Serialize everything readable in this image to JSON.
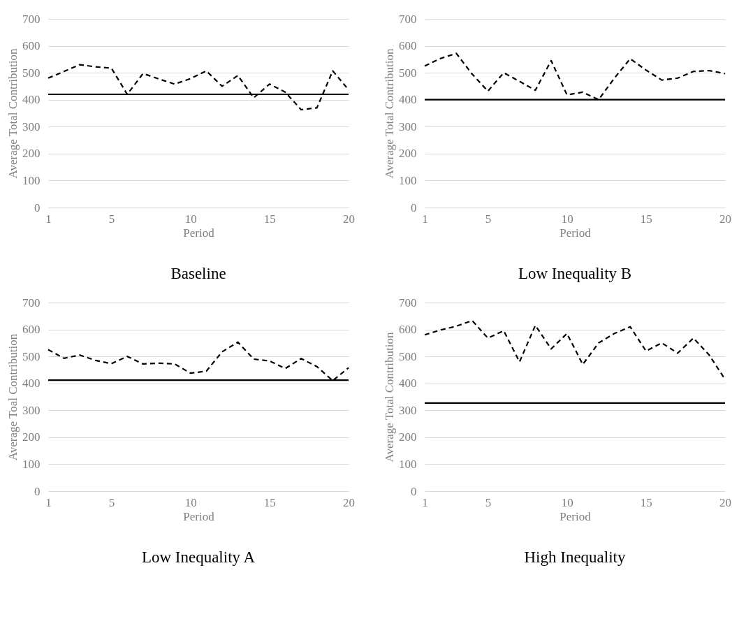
{
  "chart_data": [
    {
      "type": "line",
      "title": "Baseline",
      "xlabel": "Period",
      "ylabel": "Average Total Contribution",
      "x": [
        1,
        2,
        3,
        4,
        5,
        6,
        7,
        8,
        9,
        10,
        11,
        12,
        13,
        14,
        15,
        16,
        17,
        18,
        19,
        20
      ],
      "xlim": [
        1,
        20
      ],
      "xticks": [
        1,
        5,
        10,
        15,
        20
      ],
      "ylim": [
        0,
        700
      ],
      "yticks": [
        0,
        100,
        200,
        300,
        400,
        500,
        600,
        700
      ],
      "grid": "y",
      "series": [
        {
          "color": "#000000",
          "line_style": "dashed",
          "values": [
            480,
            505,
            530,
            522,
            517,
            420,
            497,
            477,
            458,
            478,
            507,
            450,
            490,
            407,
            458,
            428,
            363,
            370,
            507,
            437
          ]
        },
        {
          "color": "#000000",
          "line_style": "solid",
          "values": [
            420,
            420,
            420,
            420,
            420,
            420,
            420,
            420,
            420,
            420,
            420,
            420,
            420,
            420,
            420,
            420,
            420,
            420,
            420,
            420
          ]
        }
      ]
    },
    {
      "type": "line",
      "title": "Low Inequality B",
      "xlabel": "Period",
      "ylabel": "Average Total Contribution",
      "x": [
        1,
        2,
        3,
        4,
        5,
        6,
        7,
        8,
        9,
        10,
        11,
        12,
        13,
        14,
        15,
        16,
        17,
        18,
        19,
        20
      ],
      "xlim": [
        1,
        20
      ],
      "xticks": [
        1,
        5,
        10,
        15,
        20
      ],
      "ylim": [
        0,
        700
      ],
      "yticks": [
        0,
        100,
        200,
        300,
        400,
        500,
        600,
        700
      ],
      "grid": "y",
      "series": [
        {
          "color": "#000000",
          "line_style": "dashed",
          "values": [
            525,
            553,
            572,
            495,
            432,
            500,
            468,
            435,
            545,
            418,
            428,
            400,
            480,
            552,
            510,
            473,
            480,
            505,
            508,
            497
          ]
        },
        {
          "color": "#000000",
          "line_style": "solid",
          "values": [
            400,
            400,
            400,
            400,
            400,
            400,
            400,
            400,
            400,
            400,
            400,
            400,
            400,
            400,
            400,
            400,
            400,
            400,
            400,
            400
          ]
        }
      ]
    },
    {
      "type": "line",
      "title": "Low Inequality A",
      "xlabel": "Period",
      "ylabel": "Average Toal Contribution",
      "x": [
        1,
        2,
        3,
        4,
        5,
        6,
        7,
        8,
        9,
        10,
        11,
        12,
        13,
        14,
        15,
        16,
        17,
        18,
        19,
        20
      ],
      "xlim": [
        1,
        20
      ],
      "xticks": [
        1,
        5,
        10,
        15,
        20
      ],
      "ylim": [
        0,
        700
      ],
      "yticks": [
        0,
        100,
        200,
        300,
        400,
        500,
        600,
        700
      ],
      "grid": "y",
      "series": [
        {
          "color": "#000000",
          "line_style": "dashed",
          "values": [
            525,
            493,
            505,
            485,
            473,
            500,
            472,
            475,
            472,
            438,
            445,
            517,
            553,
            490,
            483,
            455,
            492,
            462,
            410,
            458
          ]
        },
        {
          "color": "#000000",
          "line_style": "solid",
          "values": [
            412,
            412,
            412,
            412,
            412,
            412,
            412,
            412,
            412,
            412,
            412,
            412,
            412,
            412,
            412,
            412,
            412,
            412,
            412,
            412
          ]
        }
      ]
    },
    {
      "type": "line",
      "title": "High Inequality",
      "xlabel": "Period",
      "ylabel": "Average Total Contribution",
      "x": [
        1,
        2,
        3,
        4,
        5,
        6,
        7,
        8,
        9,
        10,
        11,
        12,
        13,
        14,
        15,
        16,
        17,
        18,
        19,
        20
      ],
      "xlim": [
        1,
        20
      ],
      "xticks": [
        1,
        5,
        10,
        15,
        20
      ],
      "ylim": [
        0,
        700
      ],
      "yticks": [
        0,
        100,
        200,
        300,
        400,
        500,
        600,
        700
      ],
      "grid": "y",
      "series": [
        {
          "color": "#000000",
          "line_style": "dashed",
          "values": [
            580,
            598,
            612,
            633,
            568,
            595,
            480,
            615,
            528,
            585,
            470,
            550,
            585,
            610,
            520,
            550,
            512,
            568,
            505,
            415
          ]
        },
        {
          "color": "#000000",
          "line_style": "solid",
          "values": [
            327,
            327,
            327,
            327,
            327,
            327,
            327,
            327,
            327,
            327,
            327,
            327,
            327,
            327,
            327,
            327,
            327,
            327,
            327,
            327
          ]
        }
      ]
    }
  ]
}
